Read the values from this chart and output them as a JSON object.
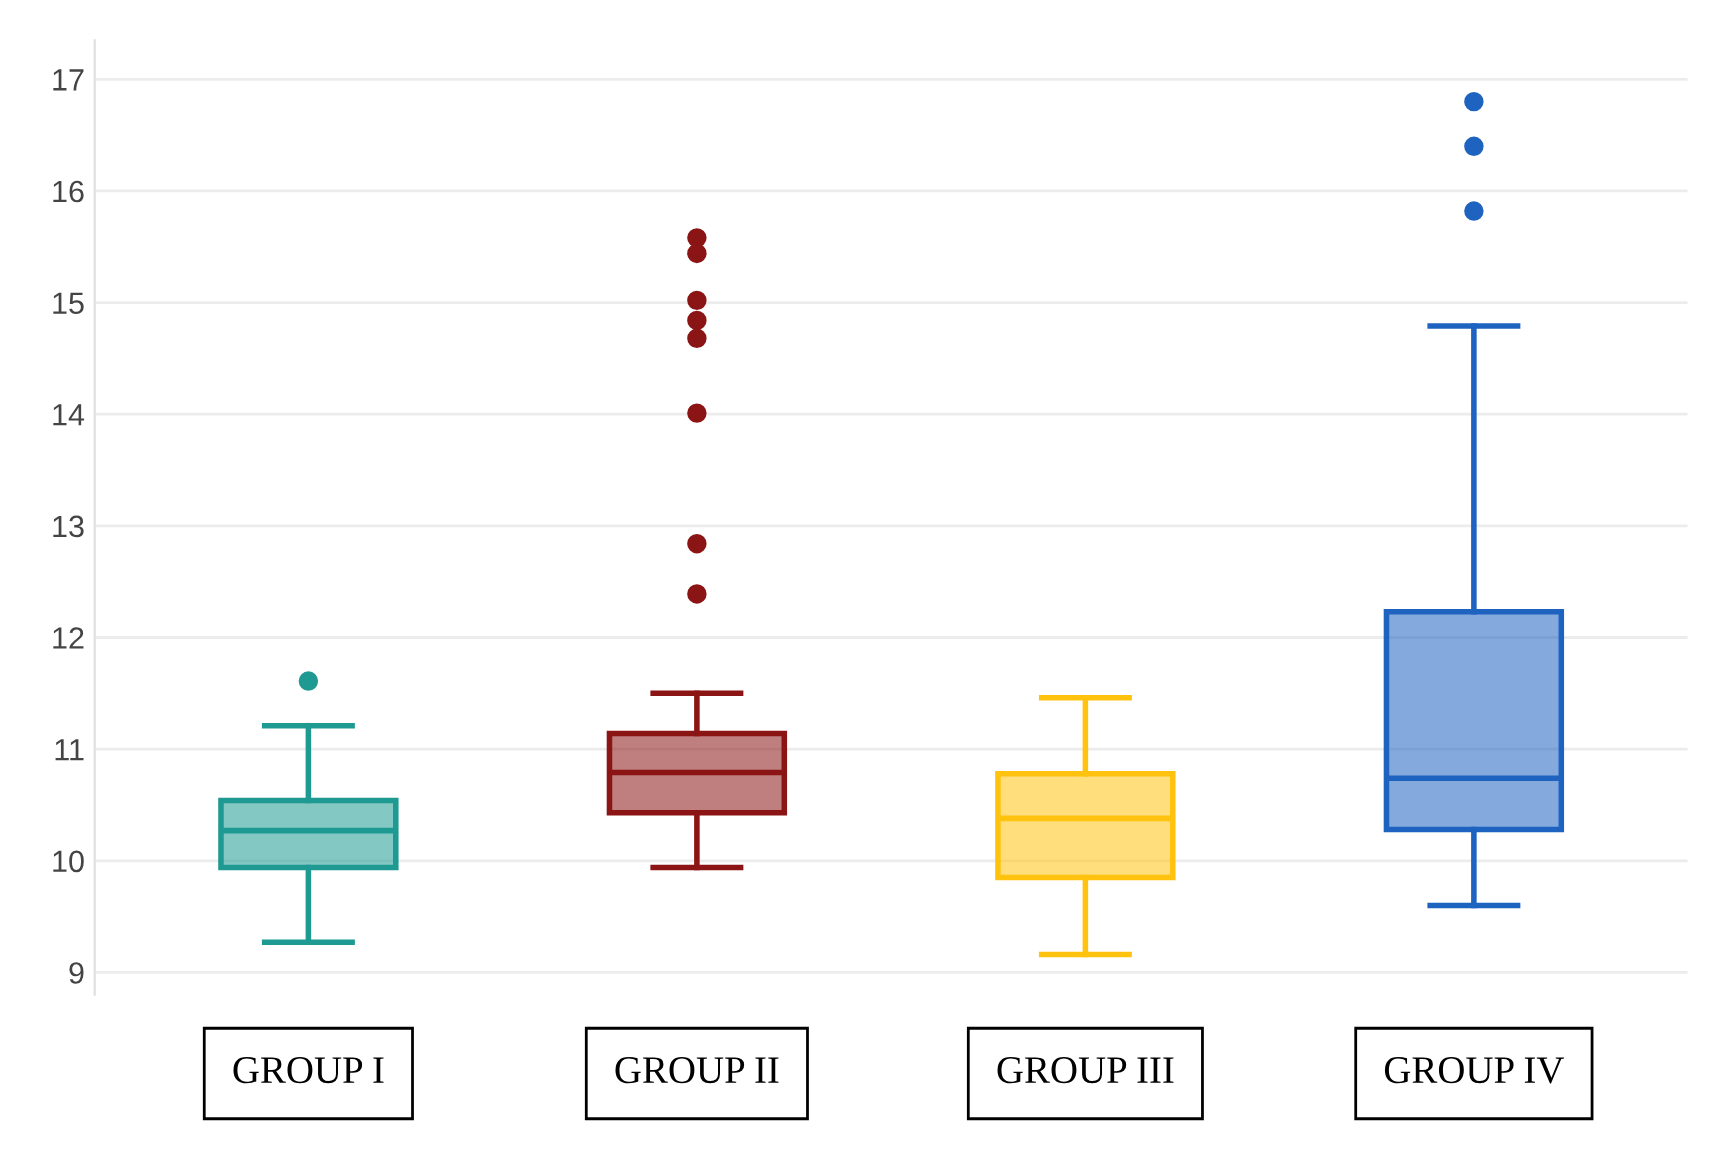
{
  "chart_data": {
    "type": "box",
    "categories": [
      "GROUP I",
      "GROUP II",
      "GROUP III",
      "GROUP IV"
    ],
    "colors": [
      "#1f9a92",
      "#8b1515",
      "#ffc20e",
      "#1f63c0"
    ],
    "boxes": [
      {
        "low": 9.27,
        "q1": 9.94,
        "median": 10.27,
        "q3": 10.54,
        "high": 11.21,
        "outliers": [
          11.61
        ]
      },
      {
        "low": 9.94,
        "q1": 10.43,
        "median": 10.79,
        "q3": 11.14,
        "high": 11.5,
        "outliers": [
          15.58,
          15.44,
          15.02,
          14.84,
          14.68,
          14.01,
          12.84,
          12.39
        ]
      },
      {
        "low": 9.16,
        "q1": 9.85,
        "median": 10.38,
        "q3": 10.78,
        "high": 11.46
      },
      {
        "low": 9.6,
        "q1": 10.28,
        "median": 10.74,
        "q3": 12.23,
        "high": 14.79,
        "outliers": [
          16.8,
          16.4,
          15.82
        ]
      }
    ],
    "ylim": [
      8.8,
      17.35
    ],
    "yticks": [
      9,
      10,
      11,
      12,
      13,
      14,
      15,
      16,
      17
    ],
    "grid": "y",
    "legend": false
  }
}
